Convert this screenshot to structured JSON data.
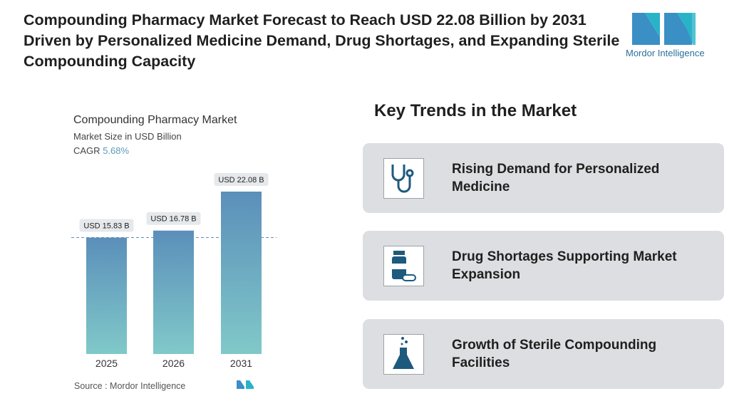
{
  "header": {
    "title": "Compounding Pharmacy Market Forecast to Reach USD 22.08 Billion by 2031 Driven by Personalized Medicine Demand, Drug Shortages, and Expanding Sterile Compounding Capacity",
    "logo": "Mordor Intelligence"
  },
  "chart_data": {
    "type": "bar",
    "title": "Compounding Pharmacy Market",
    "subtitle": "Market Size in USD Billion",
    "cagr_label": "CAGR",
    "cagr": "5.68%",
    "categories": [
      "2025",
      "2026",
      "2031"
    ],
    "values": [
      15.83,
      16.78,
      22.08
    ],
    "value_labels": [
      "USD 15.83 B",
      "USD 16.78 B",
      "USD 22.08 B"
    ],
    "color": [
      "#5b8fba",
      "#80c9c9"
    ],
    "source_label": "Source :",
    "source": "Mordor Intelligence"
  },
  "trends": {
    "title": "Key Trends in the Market",
    "items": [
      "Rising Demand for Personalized Medicine",
      "Drug Shortages Supporting Market Expansion",
      "Growth of Sterile Compounding Facilities"
    ]
  }
}
